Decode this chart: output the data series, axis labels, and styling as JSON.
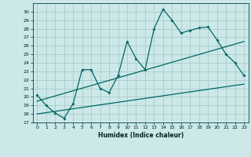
{
  "title": "",
  "xlabel": "Humidex (Indice chaleur)",
  "bg_color": "#cce8e8",
  "grid_color": "#aacccc",
  "line_color": "#006666",
  "xlim": [
    -0.5,
    23.5
  ],
  "ylim": [
    17,
    31
  ],
  "yticks": [
    17,
    18,
    19,
    20,
    21,
    22,
    23,
    24,
    25,
    26,
    27,
    28,
    29,
    30
  ],
  "xticks": [
    0,
    1,
    2,
    3,
    4,
    5,
    6,
    7,
    8,
    9,
    10,
    11,
    12,
    13,
    14,
    15,
    16,
    17,
    18,
    19,
    20,
    21,
    22,
    23
  ],
  "series1_x": [
    0,
    1,
    2,
    3,
    4,
    5,
    6,
    7,
    8,
    9,
    10,
    11,
    12,
    13,
    14,
    15,
    16,
    17,
    18,
    19,
    20,
    21,
    22,
    23
  ],
  "series1_y": [
    20.2,
    19.0,
    18.1,
    17.5,
    19.2,
    23.2,
    23.2,
    21.0,
    20.5,
    22.5,
    26.5,
    24.5,
    23.2,
    28.0,
    30.3,
    29.0,
    27.5,
    27.8,
    28.1,
    28.2,
    26.7,
    25.0,
    24.0,
    22.5
  ],
  "series2_x": [
    0,
    23
  ],
  "series2_y": [
    18.0,
    21.5
  ],
  "series3_x": [
    0,
    23
  ],
  "series3_y": [
    19.5,
    26.5
  ]
}
